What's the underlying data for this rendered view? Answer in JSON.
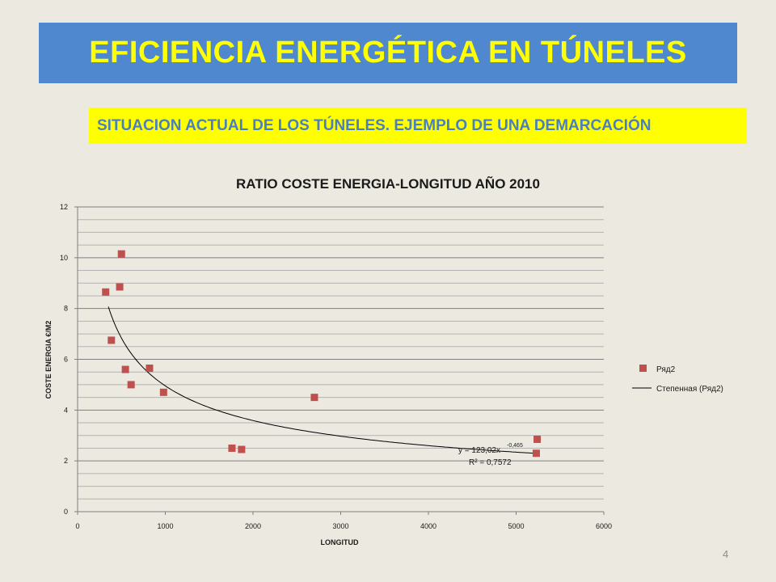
{
  "slide": {
    "title": "EFICIENCIA ENERGÉTICA EN TÚNELES",
    "subtitle": "SITUACION ACTUAL DE LOS TÚNELES. EJEMPLO DE UNA DEMARCACIÓN",
    "page_number": "4"
  },
  "colors": {
    "banner": "#4f88cf",
    "title_text": "#ffff00",
    "subtitle_bg": "#ffff00",
    "subtitle_text": "#4a7fc0",
    "marker": "#c0504d",
    "trendline": "#000000",
    "grid": "#8c8c8c",
    "background": "#ece9e0"
  },
  "chart_data": {
    "type": "scatter",
    "title": "RATIO COSTE ENERGIA-LONGITUD AÑO 2010",
    "xlabel": "LONGITUD",
    "ylabel": "COSTE ENERGIA  €/M2",
    "xlim": [
      0,
      6000
    ],
    "ylim": [
      0,
      12
    ],
    "x_ticks": [
      "0",
      "1000",
      "2000",
      "3000",
      "4000",
      "5000",
      "6000"
    ],
    "y_ticks": [
      "0",
      "2",
      "4",
      "6",
      "8",
      "10",
      "12"
    ],
    "grid": true,
    "legend_position": "right",
    "series": [
      {
        "name": "Ряд2",
        "points": [
          {
            "x": 320,
            "y": 8.65
          },
          {
            "x": 385,
            "y": 6.75
          },
          {
            "x": 480,
            "y": 8.85
          },
          {
            "x": 500,
            "y": 10.15
          },
          {
            "x": 545,
            "y": 5.6
          },
          {
            "x": 610,
            "y": 5.0
          },
          {
            "x": 820,
            "y": 5.65
          },
          {
            "x": 980,
            "y": 4.7
          },
          {
            "x": 1760,
            "y": 2.5
          },
          {
            "x": 1870,
            "y": 2.45
          },
          {
            "x": 2700,
            "y": 4.5
          },
          {
            "x": 5230,
            "y": 2.3
          },
          {
            "x": 5240,
            "y": 2.85
          }
        ]
      }
    ],
    "trendline": {
      "name": "Степенная (Ряд2)",
      "type": "power",
      "a": 123.02,
      "b": -0.465,
      "x_range": [
        350,
        5230
      ],
      "equation_label": "y = 123,02x",
      "exponent_label": "-0,465",
      "r2_label": "R² = 0,7572"
    }
  }
}
